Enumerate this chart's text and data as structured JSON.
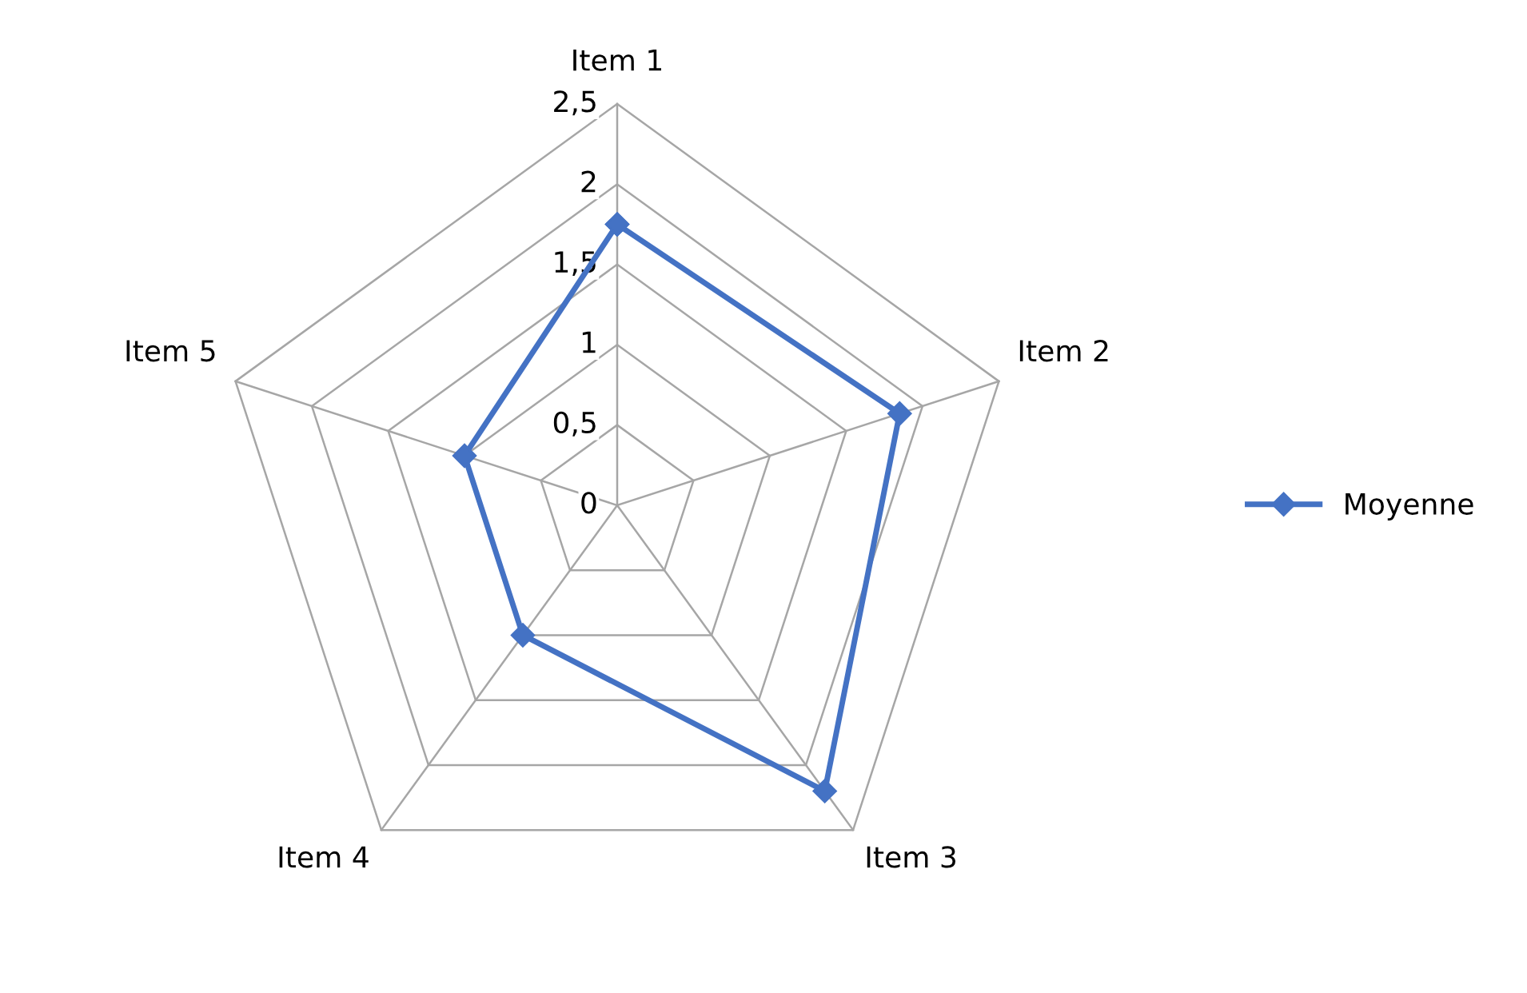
{
  "chart_data": {
    "type": "radar",
    "categories": [
      "Item 1",
      "Item 2",
      "Item 3",
      "Item 4",
      "Item 5"
    ],
    "series": [
      {
        "name": "Moyenne",
        "color": "#4472c4",
        "values": [
          1.75,
          1.85,
          2.2,
          1.0,
          1.0
        ]
      }
    ],
    "ylim": [
      0,
      2.5
    ],
    "yticks": [
      0,
      {
        "value": 0.5,
        "label": "0,5"
      },
      1,
      {
        "value": 1.5,
        "label": "1,5"
      },
      2,
      {
        "value": 2.5,
        "label": "2,5"
      }
    ],
    "marker": "diamond",
    "line_style": "solid",
    "grid": true,
    "legend": "right"
  }
}
